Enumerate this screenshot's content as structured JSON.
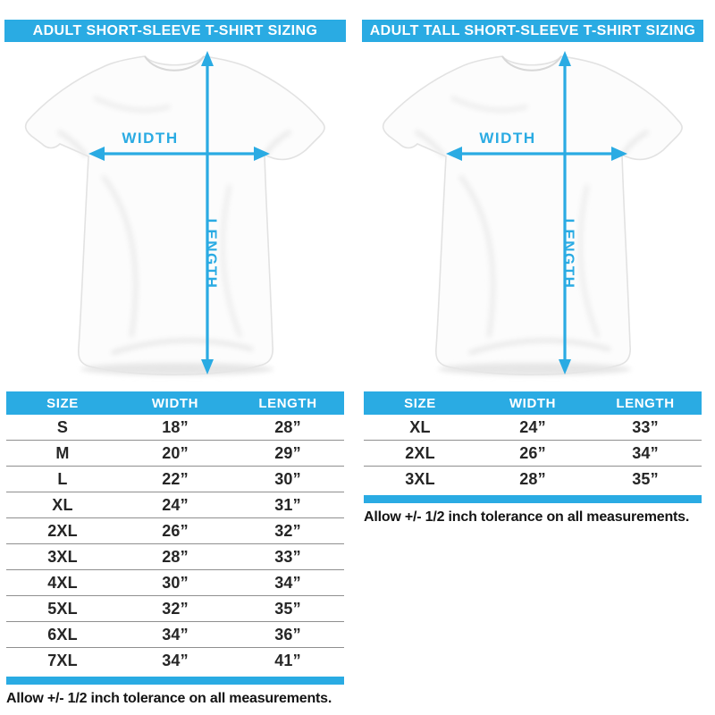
{
  "colors": {
    "accent": "#2aabe3",
    "separator": "#8f8f8f",
    "text_dark": "#262626"
  },
  "panels": [
    {
      "title": "ADULT SHORT-SLEEVE T-SHIRT SIZING",
      "diagram": {
        "width_label": "WIDTH",
        "length_label": "LENGTH"
      },
      "table": {
        "headers": [
          "SIZE",
          "WIDTH",
          "LENGTH"
        ],
        "rows": [
          [
            "S",
            "18”",
            "28”"
          ],
          [
            "M",
            "20”",
            "29”"
          ],
          [
            "L",
            "22”",
            "30”"
          ],
          [
            "XL",
            "24”",
            "31”"
          ],
          [
            "2XL",
            "26”",
            "32”"
          ],
          [
            "3XL",
            "28”",
            "33”"
          ],
          [
            "4XL",
            "30”",
            "34”"
          ],
          [
            "5XL",
            "32”",
            "35”"
          ],
          [
            "6XL",
            "34”",
            "36”"
          ],
          [
            "7XL",
            "34”",
            "41”"
          ]
        ]
      },
      "footnote": "Allow +/- 1/2 inch tolerance on all measurements."
    },
    {
      "title": "ADULT TALL SHORT-SLEEVE T-SHIRT SIZING",
      "diagram": {
        "width_label": "WIDTH",
        "length_label": "LENGTH"
      },
      "table": {
        "headers": [
          "SIZE",
          "WIDTH",
          "LENGTH"
        ],
        "rows": [
          [
            "XL",
            "24”",
            "33”"
          ],
          [
            "2XL",
            "26”",
            "34”"
          ],
          [
            "3XL",
            "28”",
            "35”"
          ]
        ]
      },
      "footnote": "Allow +/- 1/2 inch tolerance on all measurements."
    }
  ]
}
